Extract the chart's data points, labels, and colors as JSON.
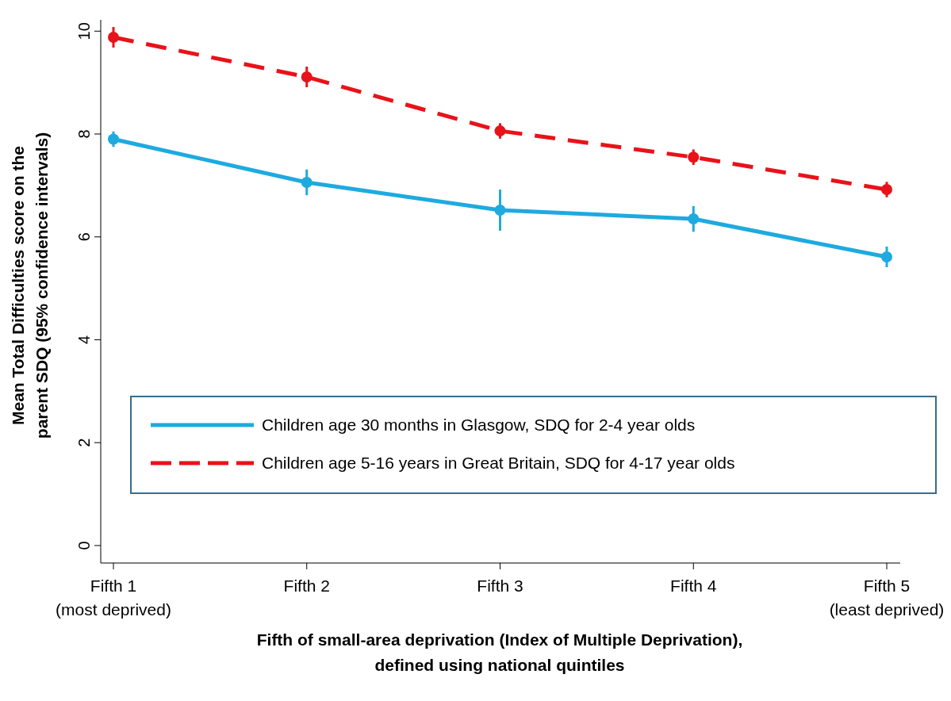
{
  "chart_data": {
    "type": "line",
    "xlabel": "Fifth of small-area deprivation (Index of Multiple Deprivation),\ndefined using national quintiles",
    "ylabel": "Mean Total Difficulties score on the\nparent SDQ (95% confidence intervals)",
    "categories": [
      "Fifth 1\n(most deprived)",
      "Fifth 2",
      "Fifth 3",
      "Fifth 4",
      "Fifth 5\n(least deprived)"
    ],
    "series": [
      {
        "name": "Children age 30 months in Glasgow, SDQ for 2-4 year olds",
        "color": "#1eaadf",
        "values": [
          7.9,
          7.06,
          6.52,
          6.35,
          5.61
        ],
        "errors": [
          0.15,
          0.25,
          0.4,
          0.25,
          0.2
        ],
        "line_style": "solid"
      },
      {
        "name": "Children age 5-16 years in Great Britain, SDQ for 4-17 year olds",
        "color": "#e8121a",
        "values": [
          9.88,
          9.11,
          8.06,
          7.55,
          6.92
        ],
        "errors": [
          0.2,
          0.2,
          0.15,
          0.15,
          0.15
        ],
        "line_style": "dashed"
      }
    ],
    "ylim": [
      -0.34,
      10.22
    ],
    "yticks": [
      0,
      2,
      4,
      6,
      8,
      10
    ],
    "grid": false,
    "legend": "bottom",
    "marker": "circle"
  }
}
